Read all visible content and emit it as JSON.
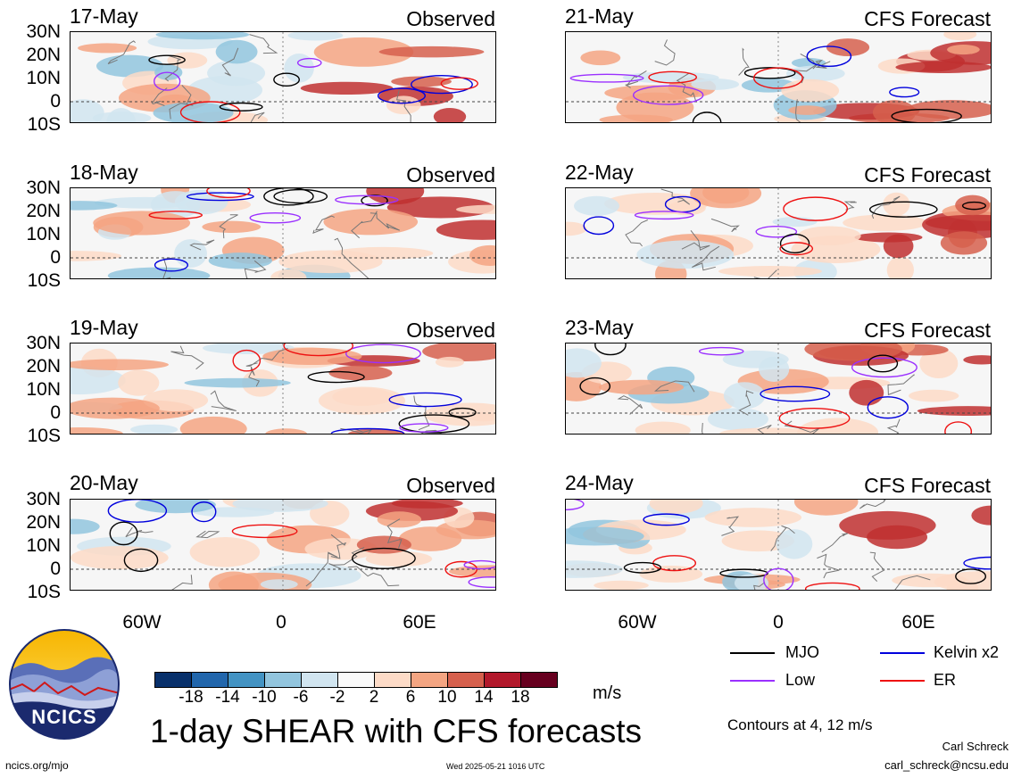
{
  "panels_left": {
    "header": "Observed",
    "dates": [
      "17-May",
      "18-May",
      "19-May",
      "20-May"
    ]
  },
  "panels_right": {
    "header": "CFS Forecast",
    "dates": [
      "21-May",
      "22-May",
      "23-May",
      "24-May"
    ]
  },
  "lat_labels": [
    "30N",
    "20N",
    "10N",
    "0",
    "10S"
  ],
  "lon_labels": [
    "60W",
    "0",
    "60E"
  ],
  "colorbar": {
    "unit": "m/s",
    "labels": [
      "-18",
      "-14",
      "-10",
      "-6",
      "-2",
      "2",
      "6",
      "10",
      "14",
      "18"
    ],
    "colors": [
      "#08306b",
      "#2166ac",
      "#4393c3",
      "#92c5de",
      "#d1e5f0",
      "#fafafa",
      "#fddbc7",
      "#f4a582",
      "#d6604d",
      "#b2182b",
      "#67001f"
    ]
  },
  "legend": {
    "items": [
      {
        "label": "MJO",
        "color": "#000000"
      },
      {
        "label": "Kelvin x2",
        "color": "#0000dd"
      },
      {
        "label": "Low",
        "color": "#9b30ff"
      },
      {
        "label": "ER",
        "color": "#ee1111"
      }
    ],
    "contours_note": "Contours at 4, 12 m/s"
  },
  "logo": {
    "text": "NCICS"
  },
  "title": "1-day SHEAR with CFS forecasts",
  "footer": {
    "url": "ncics.org/mjo",
    "timestamp": "Wed 2025-05-21 1016 UTC",
    "author": "Carl Schreck",
    "email": "carl_schreck@ncsu.edu"
  }
}
